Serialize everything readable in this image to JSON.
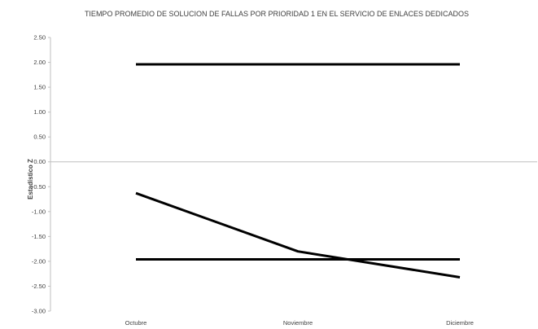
{
  "chart_data": {
    "type": "line",
    "title": "TIEMPO PROMEDIO DE SOLUCION DE FALLAS POR PRIORIDAD 1 EN EL SERVICIO DE ENLACES DEDICADOS",
    "xlabel": "",
    "ylabel": "Estadístico Z",
    "categories": [
      "Octubre",
      "Noviembre",
      "Diciembre"
    ],
    "ylim": [
      -3.0,
      2.5
    ],
    "yticks": [
      "2.50",
      "2.00",
      "1.50",
      "1.00",
      "0.50",
      "0.00",
      "-0.50",
      "-1.00",
      "-1.50",
      "-2.00",
      "-2.50",
      "-3.00"
    ],
    "grid": false,
    "legend": "none",
    "series": [
      {
        "values": [
          -0.63,
          -1.8,
          -2.32
        ],
        "color": "#000000"
      },
      {
        "values": [
          1.96,
          1.96,
          1.96
        ],
        "color": "#000000"
      },
      {
        "values": [
          -1.96,
          -1.96,
          -1.96
        ],
        "color": "#000000"
      }
    ]
  }
}
